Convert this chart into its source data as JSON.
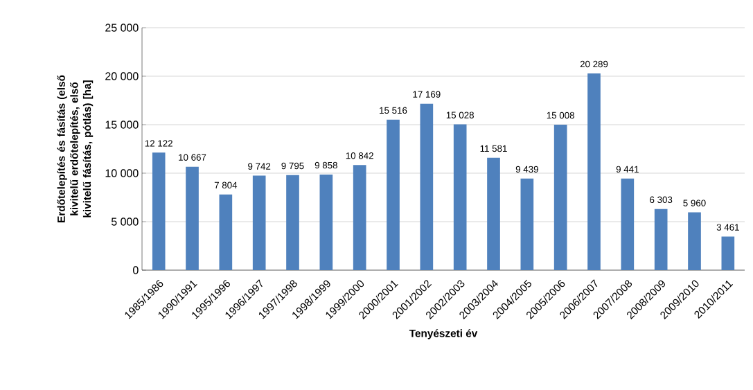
{
  "chart_data": {
    "type": "bar",
    "xlabel": "Tenyészeti év",
    "ylabel": "Erdőtelepítés és fásítás  (első kivitelű erdőtelepítés,  első kivitelű fásítás, pótlás) [ha]",
    "categories": [
      "1985/1986",
      "1990/1991",
      "1995/1996",
      "1996/1997",
      "1997/1998",
      "1998/1999",
      "1999/2000",
      "2000/2001",
      "2001/2002",
      "2002/2003",
      "2003/2004",
      "2004/2005",
      "2005/2006",
      "2006/2007",
      "2007/2008",
      "2008/2009",
      "2009/2010",
      "2010/2011"
    ],
    "values": [
      12122,
      10667,
      7804,
      9742,
      9795,
      9858,
      10842,
      15516,
      17169,
      15028,
      11581,
      9439,
      15008,
      20289,
      9441,
      6303,
      5960,
      3461
    ],
    "value_labels": [
      "12 122",
      "10 667",
      "7 804",
      "9 742",
      "9 795",
      "9 858",
      "10 842",
      "15 516",
      "17 169",
      "15 028",
      "11 581",
      "9 439",
      "15 008",
      "20 289",
      "9 441",
      "6 303",
      "5 960",
      "3 461"
    ],
    "color": "#4f81bd",
    "ylim": [
      0,
      25000
    ],
    "yticks": [
      {
        "value": 0,
        "label": "0"
      },
      {
        "value": 5000,
        "label": "5 000"
      },
      {
        "value": 10000,
        "label": "10 000"
      },
      {
        "value": 15000,
        "label": "15 000"
      },
      {
        "value": 20000,
        "label": "20 000"
      },
      {
        "value": 25000,
        "label": "25 000"
      }
    ],
    "grid": "y"
  }
}
